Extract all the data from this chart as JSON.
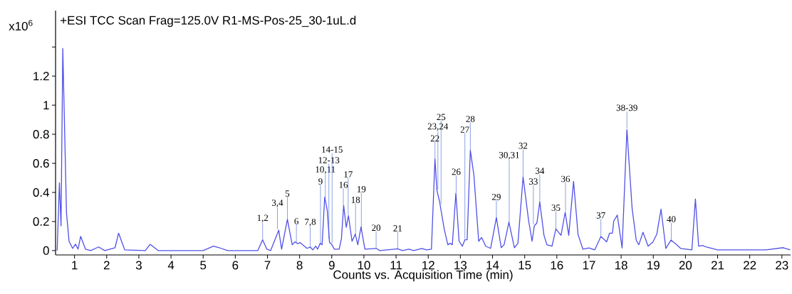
{
  "chart_data": {
    "type": "line",
    "title": "+ESI TCC Scan Frag=125.0V R1-MS-Pos-25_30-1uL.d",
    "xlabel": "Counts vs. Acquisition Time (min)",
    "ylabel": "x10$^{6}$",
    "x": [
      0.46,
      0.53,
      0.58,
      0.635,
      0.75,
      0.83,
      0.94,
      1.03,
      1.11,
      1.19,
      1.34,
      1.5,
      1.75,
      1.94,
      2.26,
      2.37,
      2.56,
      3.2,
      3.35,
      3.6,
      5.0,
      5.32,
      5.5,
      5.76,
      6.7,
      6.85,
      6.98,
      7.1,
      7.35,
      7.44,
      7.62,
      7.77,
      7.86,
      7.94,
      8.01,
      8.23,
      8.33,
      8.41,
      8.5,
      8.56,
      8.64,
      8.7,
      8.78,
      8.86,
      8.93,
      8.99,
      9.08,
      9.23,
      9.3,
      9.37,
      9.45,
      9.52,
      9.63,
      9.73,
      9.81,
      9.91,
      10.03,
      10.38,
      10.5,
      11.05,
      11.2,
      11.4,
      11.55,
      11.8,
      11.95,
      12.1,
      12.21,
      12.27,
      12.35,
      12.5,
      12.61,
      12.68,
      12.75,
      12.86,
      12.96,
      13.06,
      13.14,
      13.21,
      13.31,
      13.42,
      13.57,
      13.66,
      13.79,
      13.94,
      14.12,
      14.27,
      14.36,
      14.51,
      14.68,
      14.79,
      14.95,
      15.12,
      15.23,
      15.3,
      15.38,
      15.47,
      15.6,
      15.69,
      15.85,
      15.97,
      16.13,
      16.26,
      16.37,
      16.52,
      16.66,
      16.81,
      17.0,
      17.18,
      17.37,
      17.55,
      17.64,
      17.73,
      17.77,
      17.88,
      18.03,
      18.18,
      18.34,
      18.47,
      18.55,
      18.68,
      18.84,
      18.99,
      19.11,
      19.24,
      19.39,
      19.55,
      19.73,
      19.85,
      20.2,
      20.31,
      20.41,
      20.53,
      20.64,
      21.0,
      22.5,
      23.04,
      23.26
    ],
    "series": [
      {
        "color": "#5050e8",
        "values": [
          0,
          0.466,
          0.17,
          1.39,
          0.26,
          0.064,
          0.015,
          0.044,
          0.01,
          0.098,
          0.01,
          0,
          0.025,
          0,
          0.02,
          0.12,
          0.005,
          0,
          0.043,
          0,
          0,
          0.03,
          0.02,
          0,
          0,
          0.074,
          0.01,
          0,
          0.14,
          0.01,
          0.215,
          0.04,
          0.06,
          0.047,
          0.055,
          0.015,
          0.025,
          0.005,
          0.03,
          0.01,
          0.05,
          0.04,
          0.367,
          0.277,
          0.056,
          0.045,
          0.01,
          0.01,
          0.08,
          0.31,
          0.16,
          0.24,
          0.064,
          0.113,
          0.04,
          0.162,
          0.01,
          0.015,
          0,
          0.012,
          0,
          0.01,
          0,
          0.015,
          0.005,
          0.01,
          0.63,
          0.415,
          0.34,
          0.145,
          0.04,
          0.05,
          0.04,
          0.395,
          0.064,
          0.03,
          0.074,
          0.074,
          0.69,
          0.52,
          0.064,
          0.09,
          0.03,
          0.015,
          0.227,
          0.02,
          0.04,
          0.195,
          0.02,
          0.05,
          0.506,
          0.21,
          0.064,
          0.17,
          0.19,
          0.334,
          0.105,
          0.04,
          0.03,
          0.149,
          0.105,
          0.263,
          0.105,
          0.476,
          0.11,
          0.01,
          0.018,
          0.005,
          0.097,
          0.06,
          0.12,
          0.12,
          0.203,
          0.244,
          0.018,
          0.833,
          0.293,
          0.07,
          0.04,
          0.126,
          0.03,
          0.06,
          0.113,
          0.285,
          0.015,
          0.072,
          0.04,
          0.015,
          0.005,
          0.355,
          0.03,
          0.035,
          0.025,
          0.005,
          0.005,
          0.02,
          0.005
        ]
      }
    ],
    "xlim": [
      0.41,
      23.27
    ],
    "ylim": [
      -0.03,
      1.65
    ],
    "xticks": [
      1,
      2,
      3,
      4,
      5,
      6,
      7,
      8,
      9,
      10,
      11,
      12,
      13,
      14,
      15,
      16,
      17,
      18,
      19,
      20,
      21,
      22,
      23
    ],
    "yticks": [
      0,
      0.2,
      0.4,
      0.6,
      0.8,
      1,
      1.2,
      {
        "value": 1.4,
        "label": null
      }
    ],
    "grid": false,
    "annotations": [
      {
        "text": "1,2",
        "x": 6.85,
        "y": 0.074
      },
      {
        "text": "3,4",
        "x": 7.31,
        "y": 0.147
      },
      {
        "text": "5",
        "x": 7.62,
        "y": 0.21
      },
      {
        "text": "6",
        "x": 7.9,
        "y": 0.054
      },
      {
        "text": "7,8",
        "x": 8.33,
        "y": 0.015
      },
      {
        "text": "9",
        "x": 8.65,
        "y": 0.05
      },
      {
        "text": "10,11",
        "x": 8.8,
        "y": 0.36
      },
      {
        "text": "12-13",
        "x": 8.91,
        "y": 0.08
      },
      {
        "text": "14-15",
        "x": 9.01,
        "y": 0.05
      },
      {
        "text": "16",
        "x": 9.36,
        "y": 0.31
      },
      {
        "text": "17",
        "x": 9.51,
        "y": 0.245
      },
      {
        "text": "18",
        "x": 9.74,
        "y": 0.11
      },
      {
        "text": "19",
        "x": 9.92,
        "y": 0.15
      },
      {
        "text": "20",
        "x": 10.38,
        "y": 0.015
      },
      {
        "text": "21",
        "x": 11.05,
        "y": 0.012
      },
      {
        "text": "22",
        "x": 12.21,
        "y": 0.63
      },
      {
        "text": "23,24",
        "x": 12.3,
        "y": 0.42
      },
      {
        "text": "25",
        "x": 12.4,
        "y": 0.32
      },
      {
        "text": "26",
        "x": 12.87,
        "y": 0.4
      },
      {
        "text": "27",
        "x": 13.14,
        "y": 0.08
      },
      {
        "text": "28",
        "x": 13.31,
        "y": 0.69
      },
      {
        "text": "29",
        "x": 14.12,
        "y": 0.225
      },
      {
        "text": "30,31",
        "x": 14.52,
        "y": 0.195
      },
      {
        "text": "32",
        "x": 14.95,
        "y": 0.505
      },
      {
        "text": "33",
        "x": 15.27,
        "y": 0.18
      },
      {
        "text": "34",
        "x": 15.47,
        "y": 0.33
      },
      {
        "text": "35",
        "x": 15.97,
        "y": 0.15
      },
      {
        "text": "36",
        "x": 16.27,
        "y": 0.27
      },
      {
        "text": "37",
        "x": 17.37,
        "y": 0.1
      },
      {
        "text": "38-39",
        "x": 18.18,
        "y": 0.84
      },
      {
        "text": "40",
        "x": 19.56,
        "y": 0.074
      }
    ]
  }
}
